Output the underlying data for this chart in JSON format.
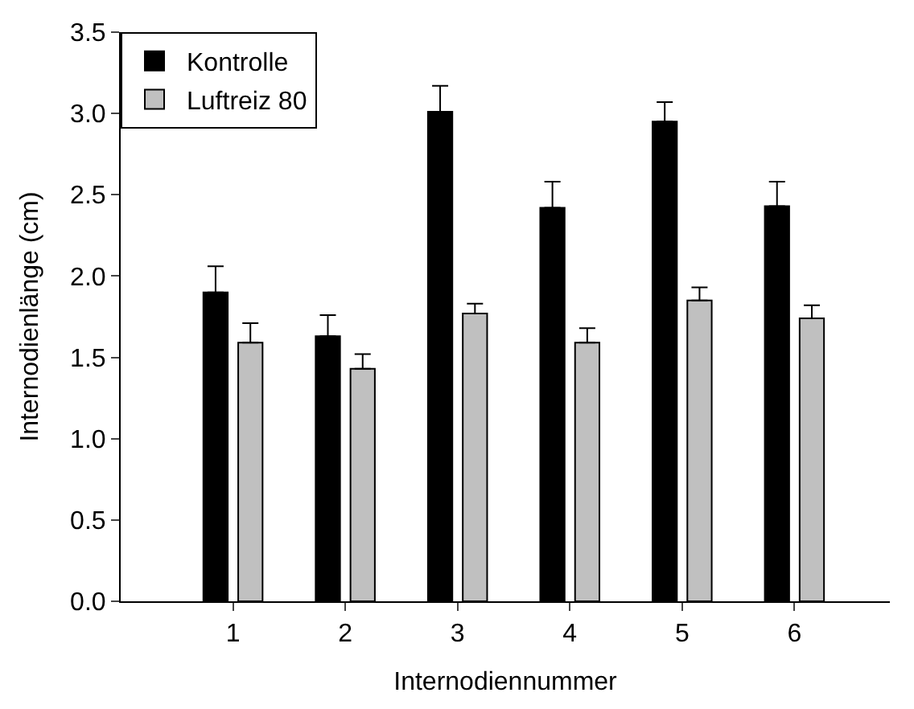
{
  "chart_data": {
    "type": "bar",
    "xlabel": "Internodiennummer",
    "ylabel": "Internodienlänge (cm)",
    "categories": [
      "1",
      "2",
      "3",
      "4",
      "5",
      "6"
    ],
    "series": [
      {
        "name": "Kontrolle",
        "color": "#000000",
        "values": [
          1.9,
          1.63,
          3.01,
          2.42,
          2.95,
          2.43
        ],
        "errors": [
          [
            1.9,
            2.06
          ],
          [
            1.63,
            1.76
          ],
          [
            3.01,
            3.17
          ],
          [
            2.42,
            2.58
          ],
          [
            2.95,
            3.07
          ],
          [
            2.43,
            2.58
          ]
        ]
      },
      {
        "name": "Luftreiz 80",
        "color": "#c0c0c0",
        "values": [
          1.59,
          1.43,
          1.77,
          1.59,
          1.85,
          1.74
        ],
        "errors": [
          [
            1.59,
            1.71
          ],
          [
            1.43,
            1.52
          ],
          [
            1.77,
            1.83
          ],
          [
            1.59,
            1.68
          ],
          [
            1.85,
            1.93
          ],
          [
            1.74,
            1.82
          ]
        ]
      }
    ],
    "ylim": [
      0,
      3.5
    ],
    "yticks": [
      {
        "value": 0,
        "label": "0.0"
      },
      {
        "value": 0.5,
        "label": "0.5"
      },
      {
        "value": 1,
        "label": "1.0"
      },
      {
        "value": 1.5,
        "label": "1.5"
      },
      {
        "value": 2,
        "label": "2.0"
      },
      {
        "value": 2.5,
        "label": "2.5"
      },
      {
        "value": 3,
        "label": "3.0"
      },
      {
        "value": 3.5,
        "label": "3.5"
      }
    ],
    "legend": "top left"
  }
}
